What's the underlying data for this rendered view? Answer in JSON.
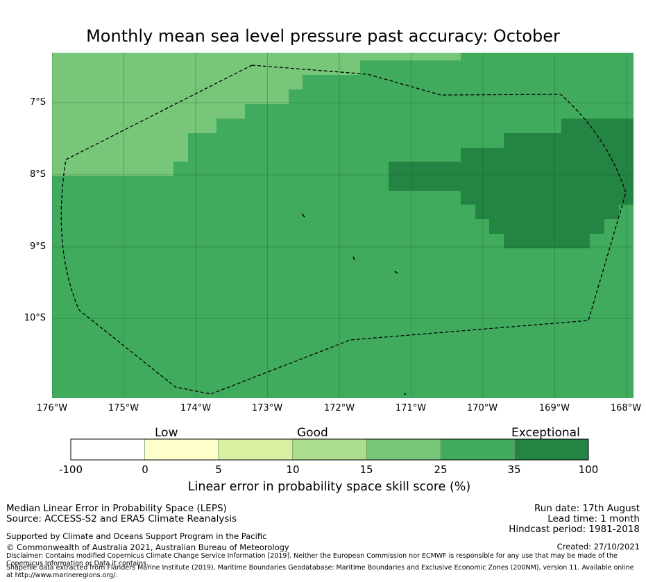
{
  "title": "Monthly mean sea level pressure past accuracy: October",
  "map": {
    "y_ticks": [
      "7°S",
      "8°S",
      "9°S",
      "10°S"
    ],
    "x_ticks": [
      "176°W",
      "175°W",
      "174°W",
      "173°W",
      "172°W",
      "171°W",
      "170°W",
      "169°W",
      "168°W"
    ],
    "colors": {
      "skill_15_25": "#78c679",
      "skill_25_35": "#41ab5d",
      "skill_35_100": "#238443",
      "boundary": "#000000",
      "gridline": "#1a5c2a"
    }
  },
  "colorbar": {
    "group_labels": [
      "Low",
      "Good",
      "Exceptional"
    ],
    "tick_labels": [
      "-100",
      "0",
      "5",
      "10",
      "15",
      "25",
      "35",
      "100"
    ],
    "segment_colors": [
      "#ffffff",
      "#ffffcc",
      "#d9f0a3",
      "#addd8e",
      "#78c679",
      "#41ab5d",
      "#238443"
    ],
    "label": "Linear error in probability space skill score (%)"
  },
  "footer": {
    "left1": "Median Linear Error in Probability Space (LEPS)",
    "left2": "Source: ACCESS-S2 and ERA5 Climate Reanalysis",
    "support": "Supported by Climate and Oceans Support Program in the Pacific",
    "copyright": "© Commonwealth of Australia 2021, Australian Bureau of Meteorology",
    "disclaimer": "Disclaimer: Contains modified Copernicus Climate Change Service Information [2019]. Neither the European Commission nor ECMWF is responsible for any use that may be made of the Copernicus Information or Data it contains.",
    "shapefile": "Shapefile data extracted from Flanders Marine Institute (2019), Maritime Boundaries Geodatabase: Maritime Boundaries and Exclusive Economic Zones (200NM), version 11. Available online at http://www.marineregions.org/.",
    "run_date": "Run date: 17th August",
    "lead_time": "Lead time: 1 month",
    "hindcast": "Hindcast period: 1981-2018",
    "created": "Created: 27/10/2021"
  }
}
